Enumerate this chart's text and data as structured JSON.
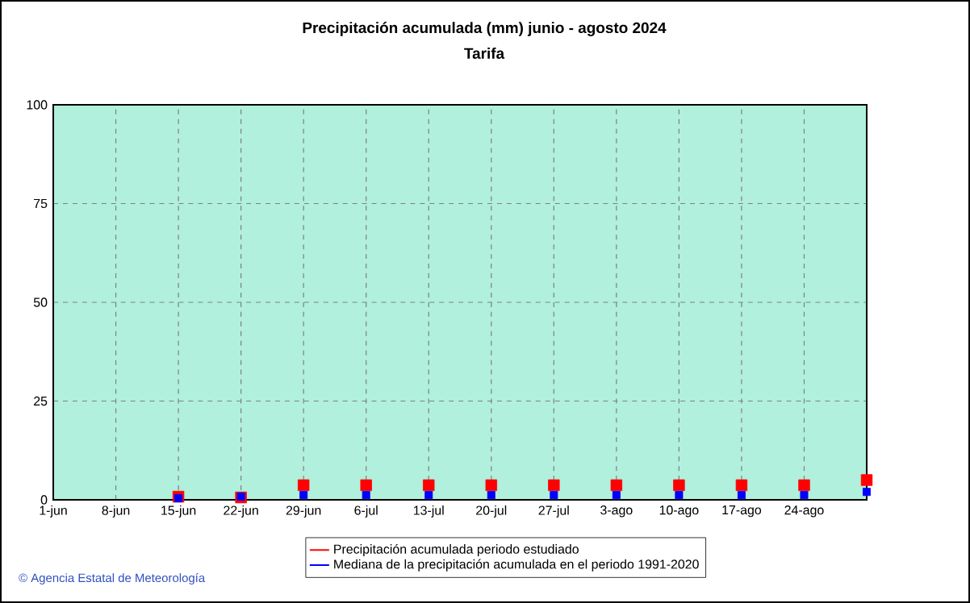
{
  "chart_data": {
    "type": "scatter",
    "title": "Precipitación acumulada (mm) junio - agosto 2024",
    "subtitle": "Tarifa",
    "categories": [
      "1-jun",
      "8-jun",
      "15-jun",
      "22-jun",
      "29-jun",
      "6-jul",
      "13-jul",
      "20-jul",
      "27-jul",
      "3-ago",
      "10-ago",
      "17-ago",
      "24-ago",
      null
    ],
    "series": [
      {
        "name": "Precipitación acumulada periodo estudiado",
        "color": "#ff0000",
        "values": [
          null,
          null,
          0.8,
          0.6,
          3.7,
          3.7,
          3.7,
          3.7,
          3.7,
          3.7,
          3.7,
          3.7,
          3.7,
          5
        ]
      },
      {
        "name": "Mediana de la precipitación acumulada en el periodo 1991-2020",
        "color": "#0000ff",
        "values": [
          null,
          null,
          0.4,
          0.8,
          1.2,
          1.2,
          1.2,
          1.2,
          1.2,
          1.2,
          1.2,
          1.2,
          1.2,
          2
        ]
      }
    ],
    "ylim": [
      0,
      100
    ],
    "yticks": [
      0,
      25,
      50,
      75,
      100
    ],
    "grid": true,
    "legend": "bottom",
    "marker": "square",
    "annotations": [
      "© Agencia Estatal de Meteorología"
    ]
  }
}
